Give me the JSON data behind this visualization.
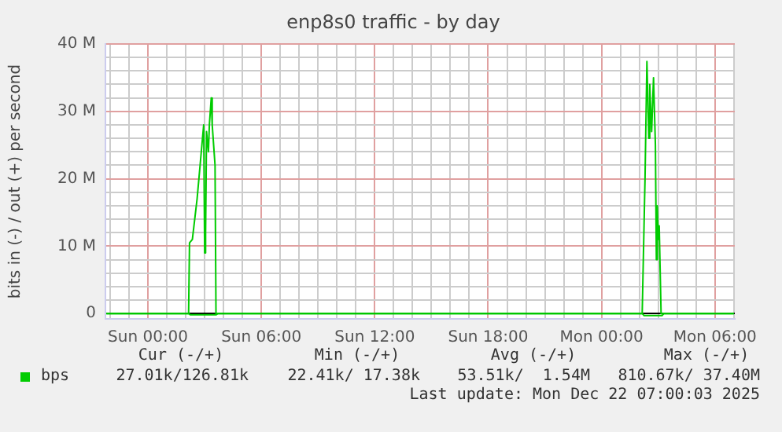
{
  "chart_data": {
    "type": "line",
    "title": "enp8s0 traffic - by day",
    "ylabel": "bits in (-) / out (+) per second",
    "xlim": [
      "2025-12-20T21:45",
      "2025-12-22T07:03"
    ],
    "ylim": [
      -0.8,
      40
    ],
    "xticks": [
      {
        "value": "2025-12-20T22:00",
        "label": null
      },
      {
        "value": "2025-12-20T23:00",
        "label": null
      },
      {
        "value": "2025-12-21T00:00",
        "label": "Sun 00:00"
      },
      {
        "value": "2025-12-21T01:00",
        "label": null
      },
      {
        "value": "2025-12-21T02:00",
        "label": null
      },
      {
        "value": "2025-12-21T03:00",
        "label": null
      },
      {
        "value": "2025-12-21T04:00",
        "label": null
      },
      {
        "value": "2025-12-21T05:00",
        "label": null
      },
      {
        "value": "2025-12-21T06:00",
        "label": "Sun 06:00"
      },
      {
        "value": "2025-12-21T07:00",
        "label": null
      },
      {
        "value": "2025-12-21T08:00",
        "label": null
      },
      {
        "value": "2025-12-21T09:00",
        "label": null
      },
      {
        "value": "2025-12-21T10:00",
        "label": null
      },
      {
        "value": "2025-12-21T11:00",
        "label": null
      },
      {
        "value": "2025-12-21T12:00",
        "label": "Sun 12:00"
      },
      {
        "value": "2025-12-21T13:00",
        "label": null
      },
      {
        "value": "2025-12-21T14:00",
        "label": null
      },
      {
        "value": "2025-12-21T15:00",
        "label": null
      },
      {
        "value": "2025-12-21T16:00",
        "label": null
      },
      {
        "value": "2025-12-21T17:00",
        "label": null
      },
      {
        "value": "2025-12-21T18:00",
        "label": "Sun 18:00"
      },
      {
        "value": "2025-12-21T19:00",
        "label": null
      },
      {
        "value": "2025-12-21T20:00",
        "label": null
      },
      {
        "value": "2025-12-21T21:00",
        "label": null
      },
      {
        "value": "2025-12-21T22:00",
        "label": null
      },
      {
        "value": "2025-12-21T23:00",
        "label": null
      },
      {
        "value": "2025-12-22T00:00",
        "label": "Mon 00:00"
      },
      {
        "value": "2025-12-22T01:00",
        "label": null
      },
      {
        "value": "2025-12-22T02:00",
        "label": null
      },
      {
        "value": "2025-12-22T03:00",
        "label": null
      },
      {
        "value": "2025-12-22T04:00",
        "label": null
      },
      {
        "value": "2025-12-22T05:00",
        "label": null
      },
      {
        "value": "2025-12-22T06:00",
        "label": "Mon 06:00"
      },
      {
        "value": "2025-12-22T07:00",
        "label": null
      }
    ],
    "yticks": [
      0,
      {
        "value": 2,
        "label": null
      },
      {
        "value": 4,
        "label": null
      },
      {
        "value": 6,
        "label": null
      },
      {
        "value": 8,
        "label": null
      },
      {
        "value": 10,
        "label": "10 M"
      },
      {
        "value": 12,
        "label": null
      },
      {
        "value": 14,
        "label": null
      },
      {
        "value": 16,
        "label": null
      },
      {
        "value": 18,
        "label": null
      },
      {
        "value": 20,
        "label": "20 M"
      },
      {
        "value": 22,
        "label": null
      },
      {
        "value": 24,
        "label": null
      },
      {
        "value": 26,
        "label": null
      },
      {
        "value": 28,
        "label": null
      },
      {
        "value": 30,
        "label": "30 M"
      },
      {
        "value": 32,
        "label": null
      },
      {
        "value": 34,
        "label": null
      },
      {
        "value": 36,
        "label": null
      },
      {
        "value": 38,
        "label": null
      },
      {
        "value": 40,
        "label": "40 M"
      }
    ],
    "grid": true,
    "legend": "bottom",
    "marker": "none",
    "line_style": "solid",
    "series": [
      {
        "name": "bps",
        "color": "#00cc00",
        "x": [
          "2025-12-20T21:48",
          "2025-12-21T02:09",
          "2025-12-21T02:12",
          "2025-12-21T02:21",
          "2025-12-21T02:36",
          "2025-12-21T02:57",
          "2025-12-21T03:00",
          "2025-12-21T03:03",
          "2025-12-21T03:06",
          "2025-12-21T03:12",
          "2025-12-21T03:15",
          "2025-12-21T03:21",
          "2025-12-21T03:24",
          "2025-12-21T03:33",
          "2025-12-21T03:36",
          "2025-12-21T03:39",
          "2025-12-22T02:09",
          "2025-12-22T02:12",
          "2025-12-22T02:18",
          "2025-12-22T02:24",
          "2025-12-22T02:30",
          "2025-12-22T02:33",
          "2025-12-22T02:39",
          "2025-12-22T02:45",
          "2025-12-22T02:51",
          "2025-12-22T02:54",
          "2025-12-22T02:57",
          "2025-12-22T03:00",
          "2025-12-22T03:03",
          "2025-12-22T03:09",
          "2025-12-22T03:12",
          "2025-12-22T07:00"
        ],
        "values": [
          0,
          0,
          10.5,
          11,
          17,
          28,
          9,
          12,
          27,
          24,
          28,
          32,
          28,
          22,
          0,
          0,
          0,
          0,
          20,
          37.4,
          26,
          34,
          27,
          35,
          25,
          8,
          16,
          11,
          13,
          0,
          0,
          0
        ]
      },
      {
        "color": "#00cc00",
        "x": [
          "2025-12-20T21:48",
          "2025-12-21T02:09",
          "2025-12-21T02:15",
          "2025-12-21T03:36",
          "2025-12-21T03:42",
          "2025-12-22T02:09",
          "2025-12-22T02:15",
          "2025-12-22T03:12",
          "2025-12-22T03:18",
          "2025-12-22T07:00"
        ],
        "values": [
          0,
          0,
          -0.2,
          -0.2,
          0,
          0,
          -0.3,
          -0.3,
          0,
          0
        ]
      }
    ],
    "annotations": [
      "Cur (-/+)",
      "Min (-/+)",
      "Avg (-/+)",
      "Max (-/+)",
      "27.01k/126.81k",
      "22.41k/ 17.38k",
      "53.51k/  1.54M",
      "810.67k/ 37.40M",
      "Last update: Mon Dec 22 07:00:03 2025"
    ]
  }
}
